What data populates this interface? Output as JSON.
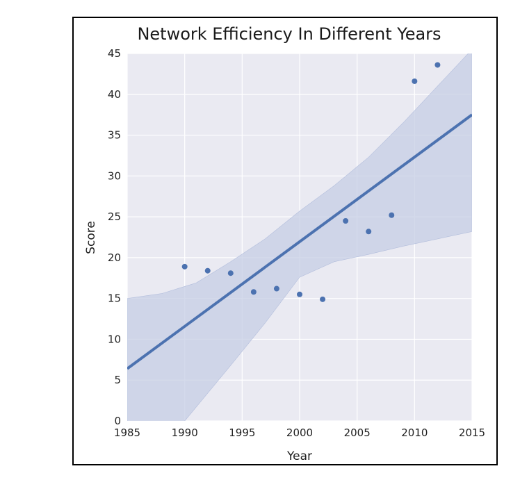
{
  "chart_data": {
    "type": "scatter",
    "title": "Network Efficiency In Different Years",
    "xlabel": "Year",
    "ylabel": "Score",
    "xlim": [
      1985,
      2015
    ],
    "ylim": [
      0,
      45
    ],
    "xticks": [
      1985,
      1990,
      1995,
      2000,
      2005,
      2010,
      2015
    ],
    "yticks": [
      0,
      5,
      10,
      15,
      20,
      25,
      30,
      35,
      40,
      45
    ],
    "grid": true,
    "colors": {
      "points": "#4c72b0",
      "line": "#4c72b0",
      "band": "#c5cde4",
      "background": "#eaeaf2",
      "grid": "#ffffff"
    },
    "points": [
      {
        "x": 1990,
        "y": 18.9
      },
      {
        "x": 1992,
        "y": 18.4
      },
      {
        "x": 1994,
        "y": 18.1
      },
      {
        "x": 1996,
        "y": 15.8
      },
      {
        "x": 1998,
        "y": 16.2
      },
      {
        "x": 2000,
        "y": 15.5
      },
      {
        "x": 2002,
        "y": 14.9
      },
      {
        "x": 2004,
        "y": 24.5
      },
      {
        "x": 2006,
        "y": 23.2
      },
      {
        "x": 2008,
        "y": 25.2
      },
      {
        "x": 2010,
        "y": 41.6
      },
      {
        "x": 2012,
        "y": 43.6
      }
    ],
    "regression_line": [
      {
        "x": 1985,
        "y": 6.4
      },
      {
        "x": 2015,
        "y": 37.5
      }
    ],
    "confidence_band": {
      "upper": [
        {
          "x": 1985,
          "y": 15.0
        },
        {
          "x": 1988,
          "y": 15.6
        },
        {
          "x": 1991,
          "y": 16.9
        },
        {
          "x": 1994,
          "y": 19.5
        },
        {
          "x": 1997,
          "y": 22.3
        },
        {
          "x": 2000,
          "y": 25.7
        },
        {
          "x": 2003,
          "y": 28.8
        },
        {
          "x": 2006,
          "y": 32.3
        },
        {
          "x": 2009,
          "y": 36.5
        },
        {
          "x": 2012,
          "y": 41.0
        },
        {
          "x": 2015,
          "y": 45.5
        }
      ],
      "lower": [
        {
          "x": 1985,
          "y": -2.0
        },
        {
          "x": 1990,
          "y": 0.0
        },
        {
          "x": 1994,
          "y": 6.8
        },
        {
          "x": 1997,
          "y": 12.0
        },
        {
          "x": 2000,
          "y": 17.6
        },
        {
          "x": 2003,
          "y": 19.5
        },
        {
          "x": 2006,
          "y": 20.4
        },
        {
          "x": 2009,
          "y": 21.4
        },
        {
          "x": 2012,
          "y": 22.3
        },
        {
          "x": 2015,
          "y": 23.2
        }
      ]
    }
  }
}
